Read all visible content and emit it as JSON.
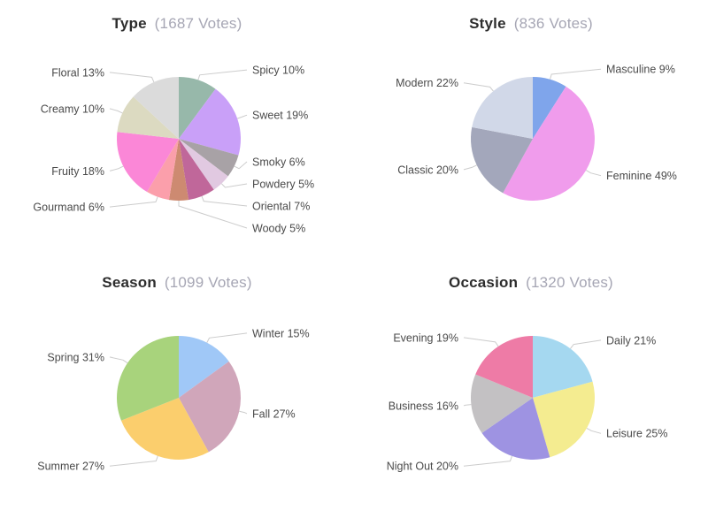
{
  "styles": {
    "background": "#ffffff",
    "title_color": "#2d2d2d",
    "votes_color": "#a6a6b4",
    "label_color": "#4a4a4a",
    "connector_color": "#cccccc"
  },
  "chart_data": [
    {
      "type": "pie",
      "title": "Type",
      "votes_text": "(1687 Votes)",
      "total_votes": 1687,
      "legend_position": "none",
      "start_angle_deg": 0,
      "slices": [
        {
          "label": "Spicy",
          "pct": 10,
          "color": "#97b8aa"
        },
        {
          "label": "Sweet",
          "pct": 19,
          "color": "#c9a0f8"
        },
        {
          "label": "Smoky",
          "pct": 6,
          "color": "#a8a2a6"
        },
        {
          "label": "Powdery",
          "pct": 5,
          "color": "#e1c9e1"
        },
        {
          "label": "Oriental",
          "pct": 7,
          "color": "#c0679a"
        },
        {
          "label": "Woody",
          "pct": 5,
          "color": "#cd8a71"
        },
        {
          "label": "Gourmand",
          "pct": 6,
          "color": "#fb9fab"
        },
        {
          "label": "Fruity",
          "pct": 18,
          "color": "#fb87d7"
        },
        {
          "label": "Creamy",
          "pct": 10,
          "color": "#dcdac1"
        },
        {
          "label": "Floral",
          "pct": 13,
          "color": "#dbdbdb"
        }
      ]
    },
    {
      "type": "pie",
      "title": "Style",
      "votes_text": "(836 Votes)",
      "total_votes": 836,
      "legend_position": "none",
      "start_angle_deg": 0,
      "slices": [
        {
          "label": "Masculine",
          "pct": 9,
          "color": "#7fa5eb"
        },
        {
          "label": "Feminine",
          "pct": 49,
          "color": "#f09cec"
        },
        {
          "label": "Classic",
          "pct": 20,
          "color": "#a3a7bb"
        },
        {
          "label": "Modern",
          "pct": 22,
          "color": "#d1d8e8"
        }
      ]
    },
    {
      "type": "pie",
      "title": "Season",
      "votes_text": "(1099 Votes)",
      "total_votes": 1099,
      "legend_position": "none",
      "start_angle_deg": 0,
      "slices": [
        {
          "label": "Winter",
          "pct": 15,
          "color": "#a0c8f7"
        },
        {
          "label": "Fall",
          "pct": 27,
          "color": "#d0a6ba"
        },
        {
          "label": "Summer",
          "pct": 27,
          "color": "#fbce6d"
        },
        {
          "label": "Spring",
          "pct": 31,
          "color": "#a8d37c"
        }
      ]
    },
    {
      "type": "pie",
      "title": "Occasion",
      "votes_text": "(1320 Votes)",
      "total_votes": 1320,
      "legend_position": "none",
      "start_angle_deg": 0,
      "slices": [
        {
          "label": "Daily",
          "pct": 21,
          "color": "#a5d8f0"
        },
        {
          "label": "Leisure",
          "pct": 25,
          "color": "#f4ec90"
        },
        {
          "label": "Night Out",
          "pct": 20,
          "color": "#9e93e2"
        },
        {
          "label": "Business",
          "pct": 16,
          "color": "#c3c1c3"
        },
        {
          "label": "Evening",
          "pct": 19,
          "color": "#ee7ba6"
        }
      ]
    }
  ]
}
